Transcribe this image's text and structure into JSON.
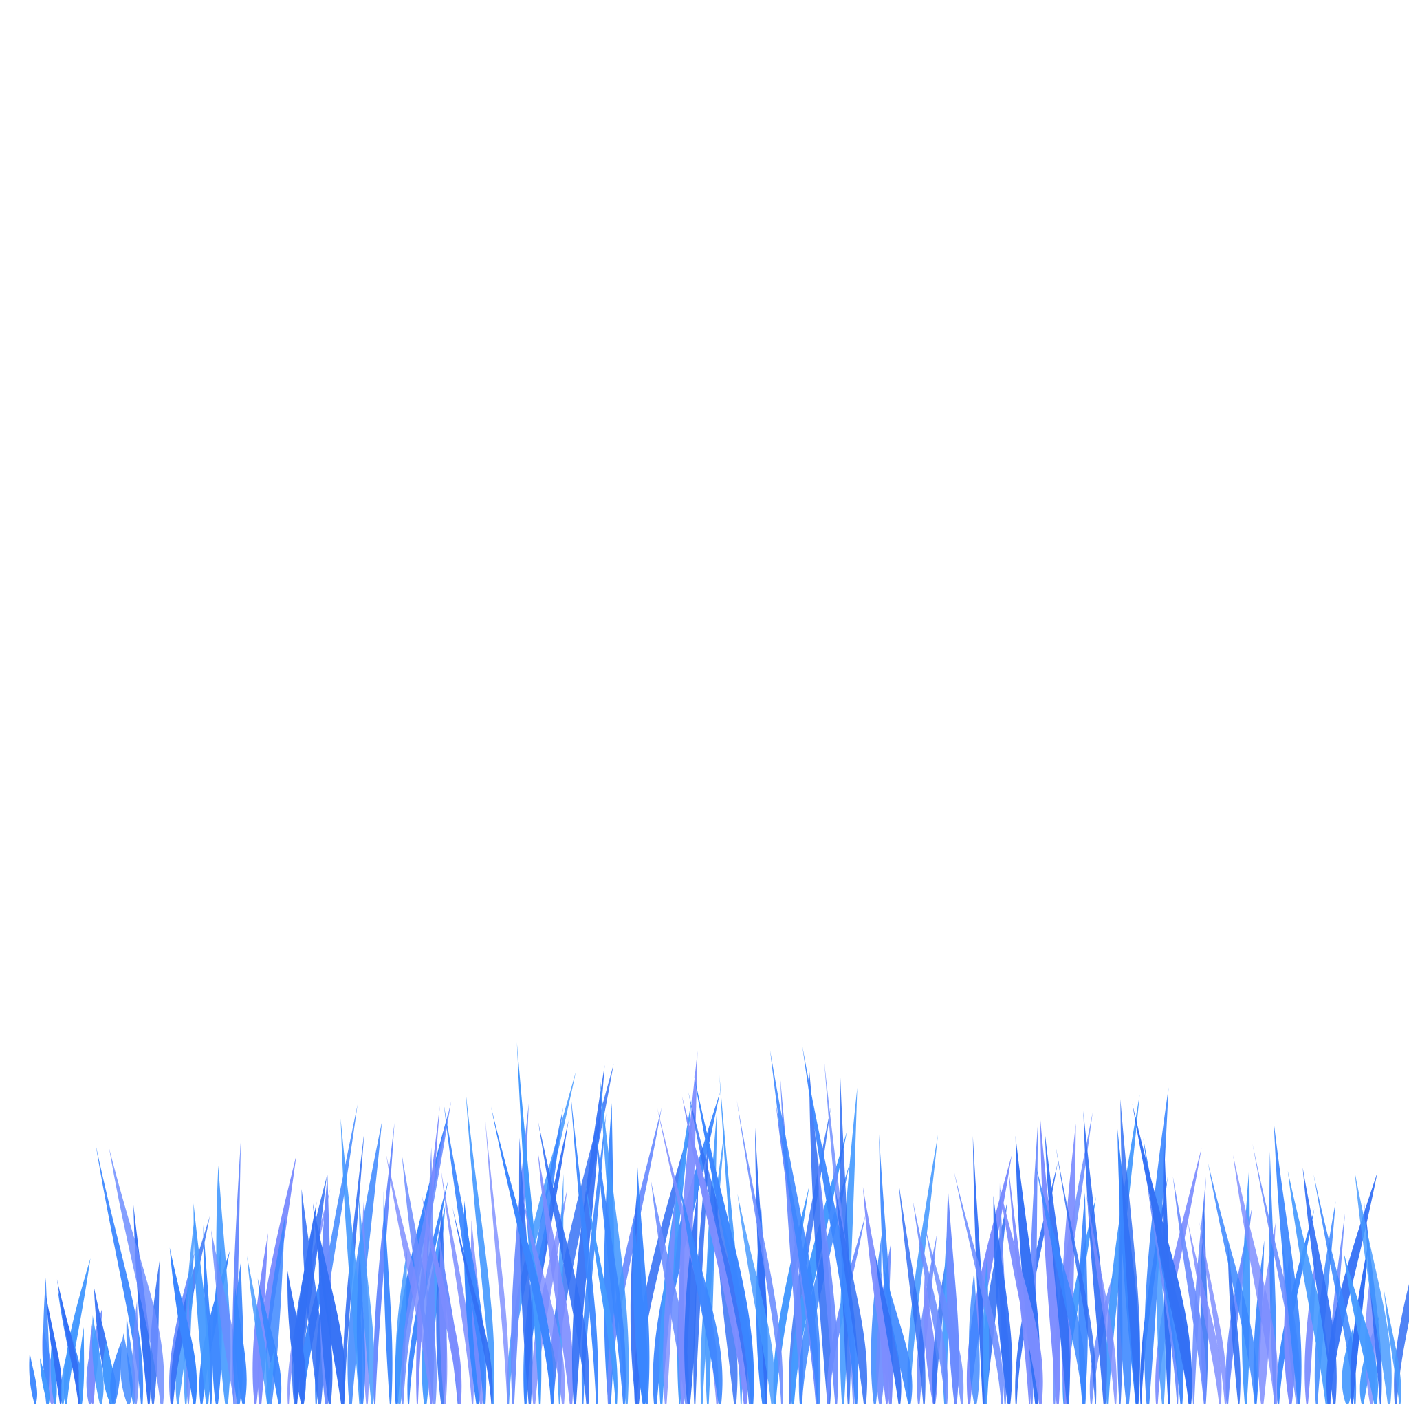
{
  "scene": {
    "subject": "grass-illustration",
    "background_color": "#ffffff",
    "palette": {
      "blue_light": "#4499ff",
      "blue_mid": "#3a86ff",
      "blue_deep": "#3370f5",
      "lavender": "#7c8dff",
      "periwinkle": "#6b8cff"
    }
  }
}
